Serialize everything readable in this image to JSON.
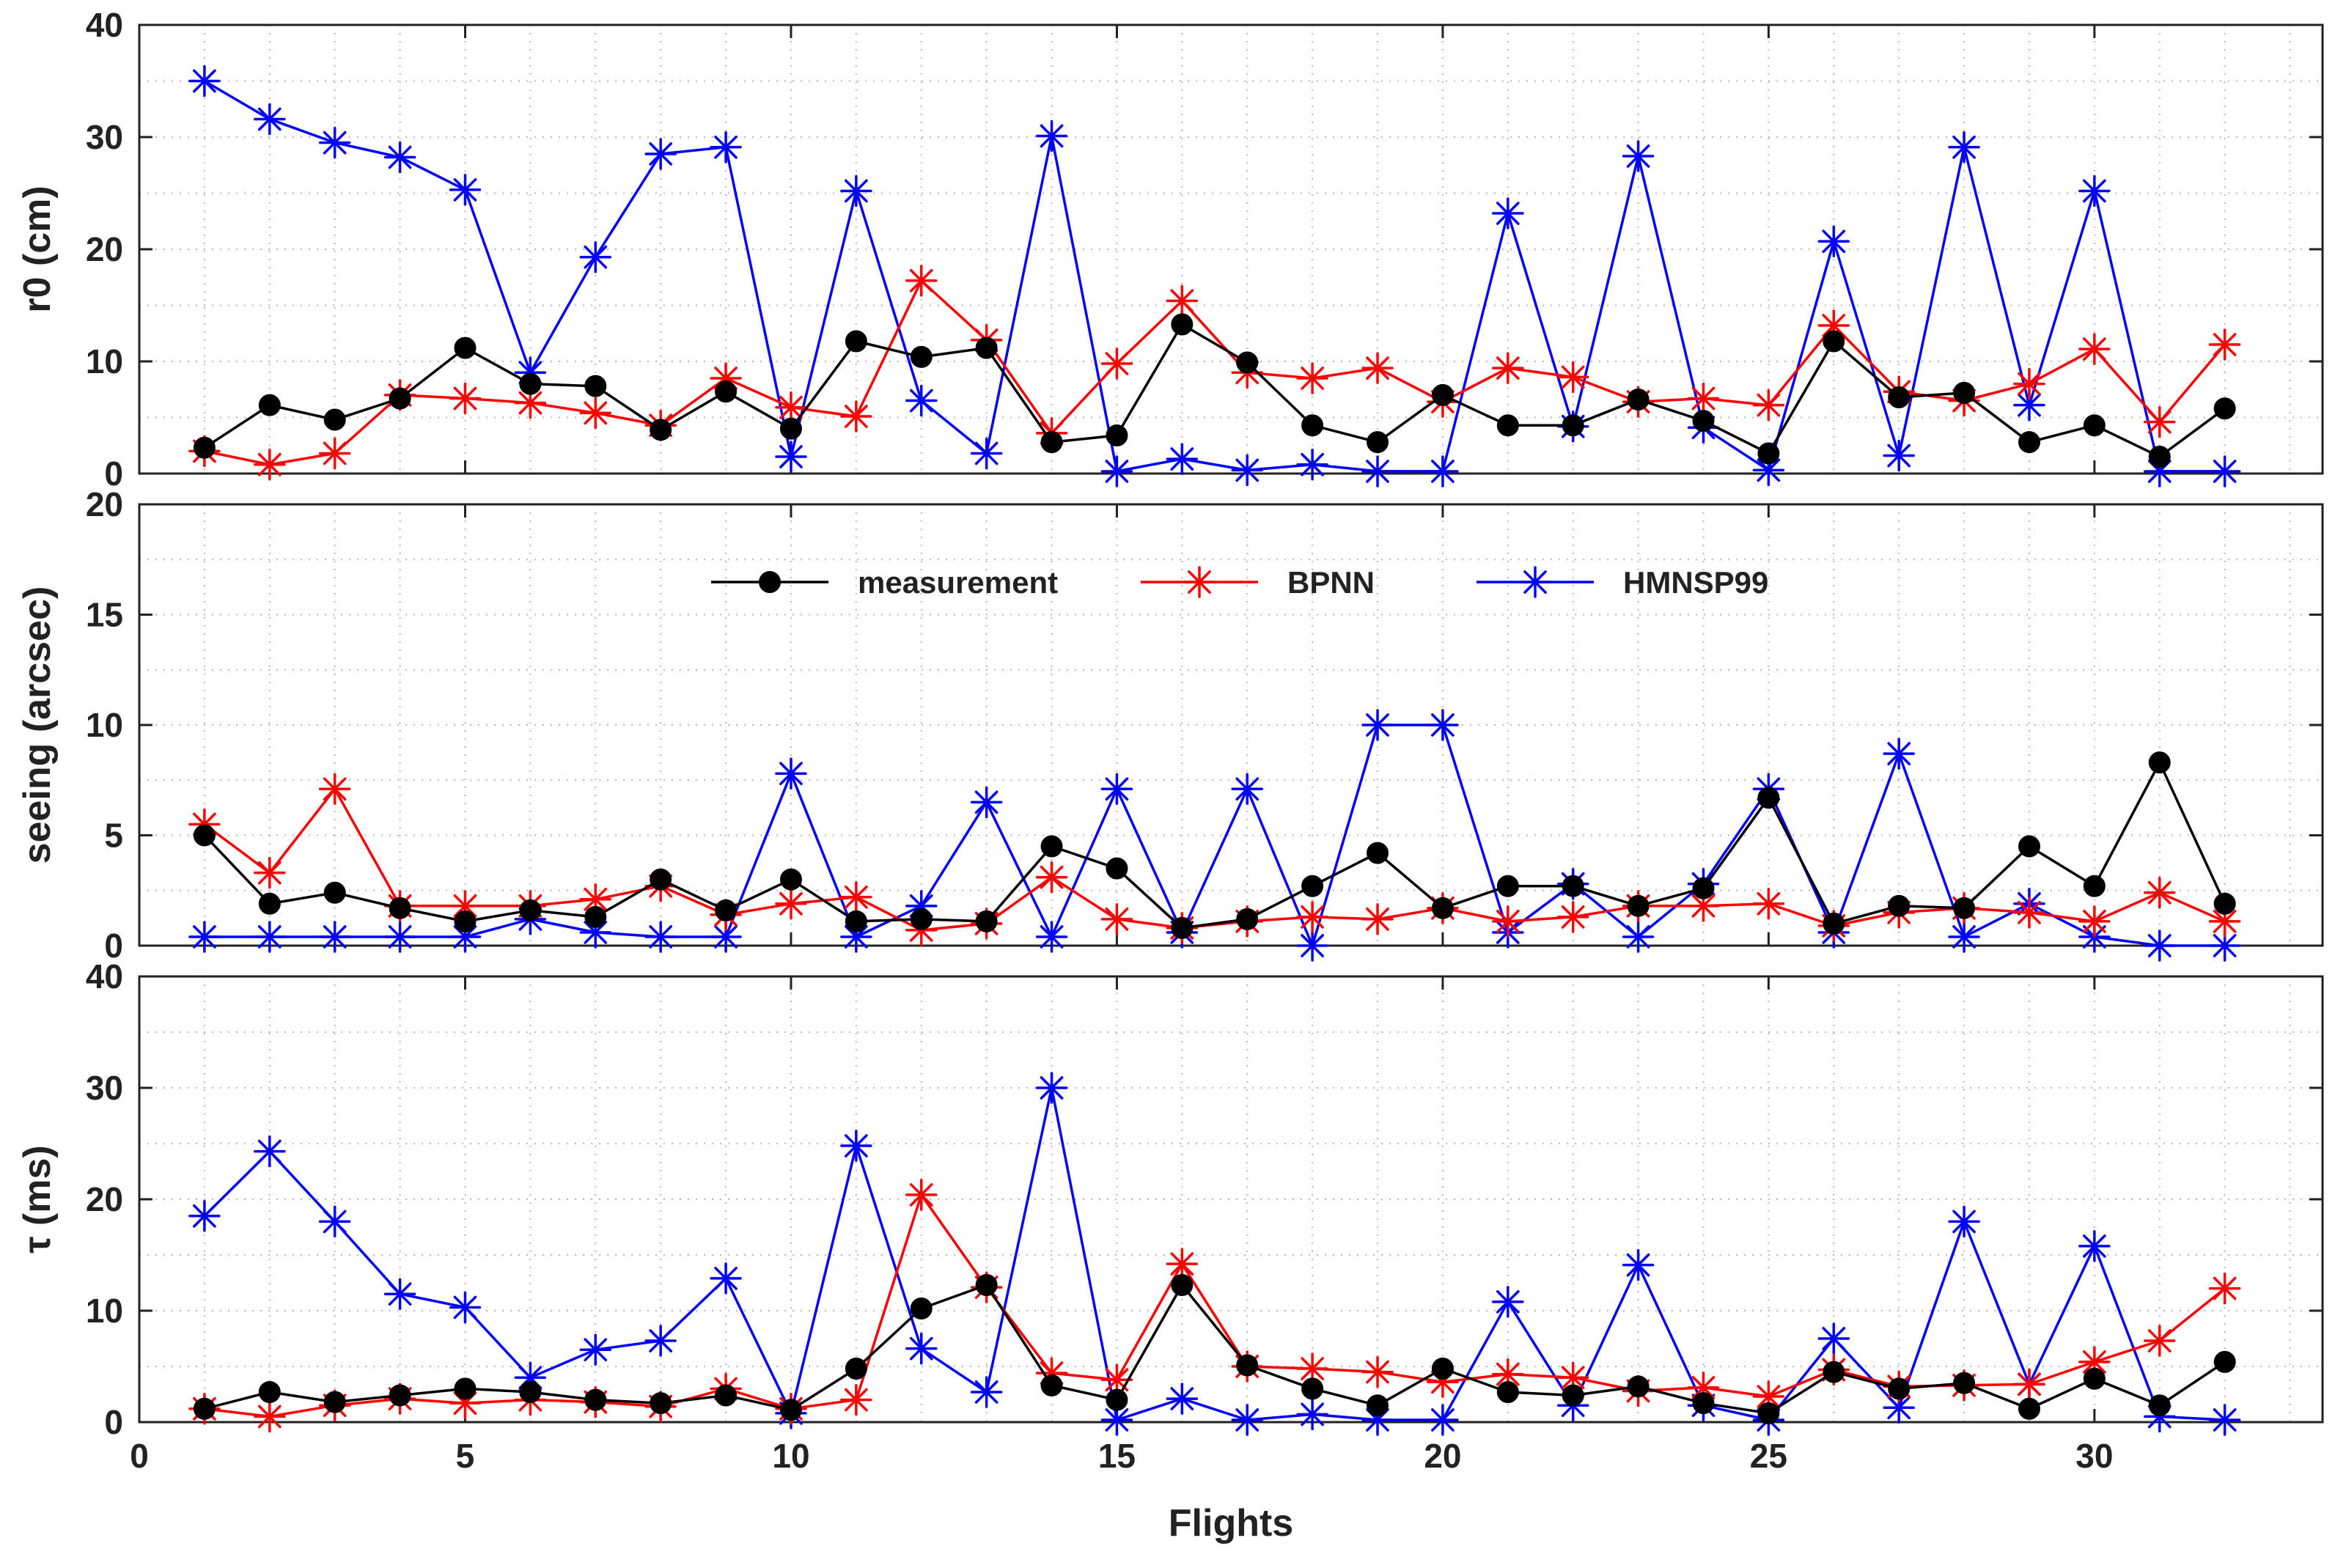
{
  "figure": {
    "xlabel": "Flights",
    "xlim": [
      0,
      33.5
    ],
    "xticks": [
      0,
      5,
      10,
      15,
      20,
      25,
      30
    ]
  },
  "legend": {
    "items": [
      {
        "label": "measurement",
        "color": "#000000",
        "marker": "circle"
      },
      {
        "label": "BPNN",
        "color": "#ff0000",
        "marker": "asterisk"
      },
      {
        "label": "HMNSP99",
        "color": "#0000ff",
        "marker": "asterisk"
      }
    ]
  },
  "chart_data": [
    {
      "type": "line",
      "ylabel": "r0 (cm)",
      "ylim": [
        0,
        40
      ],
      "yticks": [
        0,
        10,
        20,
        30,
        40
      ],
      "grid": true,
      "x": [
        1,
        2,
        3,
        4,
        5,
        6,
        7,
        8,
        9,
        10,
        11,
        12,
        13,
        14,
        15,
        16,
        17,
        18,
        19,
        20,
        21,
        22,
        23,
        24,
        25,
        26,
        27,
        28,
        29,
        30,
        31,
        32
      ],
      "series": [
        {
          "name": "measurement",
          "color": "#000000",
          "marker": "circle",
          "values": [
            2.3,
            6.1,
            4.8,
            6.7,
            11.2,
            8.0,
            7.8,
            3.9,
            7.3,
            4.0,
            11.8,
            10.4,
            11.2,
            2.8,
            3.4,
            13.3,
            9.9,
            4.3,
            2.8,
            7.0,
            4.3,
            4.3,
            6.6,
            4.7,
            1.8,
            11.8,
            6.8,
            7.2,
            2.8,
            4.3,
            1.5,
            5.8
          ]
        },
        {
          "name": "BPNN",
          "color": "#ff0000",
          "marker": "asterisk",
          "values": [
            2.0,
            0.8,
            1.8,
            7.0,
            6.7,
            6.3,
            5.4,
            4.3,
            8.5,
            5.9,
            5.1,
            17.2,
            11.9,
            3.6,
            9.8,
            15.4,
            9.0,
            8.5,
            9.4,
            6.4,
            9.4,
            8.6,
            6.4,
            6.7,
            6.1,
            13.2,
            7.3,
            6.5,
            8.0,
            11.1,
            4.6,
            11.5
          ]
        },
        {
          "name": "HMNSP99",
          "color": "#0000ff",
          "marker": "asterisk",
          "values": [
            35.0,
            31.6,
            29.5,
            28.2,
            25.3,
            9.0,
            19.3,
            28.5,
            29.1,
            1.5,
            25.2,
            6.5,
            1.8,
            30.1,
            0.2,
            1.3,
            0.3,
            0.8,
            0.2,
            0.2,
            23.2,
            4.2,
            28.3,
            4.1,
            0.3,
            20.7,
            1.6,
            29.1,
            6.1,
            25.2,
            0.2,
            0.2
          ]
        }
      ]
    },
    {
      "type": "line",
      "ylabel": "seeing (arcsec)",
      "ylim": [
        0,
        20
      ],
      "yticks": [
        0,
        5,
        10,
        15,
        20
      ],
      "grid": true,
      "x": [
        1,
        2,
        3,
        4,
        5,
        6,
        7,
        8,
        9,
        10,
        11,
        12,
        13,
        14,
        15,
        16,
        17,
        18,
        19,
        20,
        21,
        22,
        23,
        24,
        25,
        26,
        27,
        28,
        29,
        30,
        31,
        32
      ],
      "series": [
        {
          "name": "measurement",
          "color": "#000000",
          "marker": "circle",
          "values": [
            5.0,
            1.9,
            2.4,
            1.7,
            1.1,
            1.6,
            1.3,
            3.0,
            1.6,
            3.0,
            1.1,
            1.2,
            1.1,
            4.5,
            3.5,
            0.8,
            1.2,
            2.7,
            4.2,
            1.7,
            2.7,
            2.7,
            1.8,
            2.6,
            6.7,
            1.0,
            1.8,
            1.7,
            4.5,
            2.7,
            8.3,
            1.9
          ]
        },
        {
          "name": "BPNN",
          "color": "#ff0000",
          "marker": "asterisk",
          "values": [
            5.5,
            3.3,
            7.1,
            1.8,
            1.8,
            1.8,
            2.1,
            2.7,
            1.4,
            1.9,
            2.2,
            0.7,
            1.0,
            3.1,
            1.2,
            0.8,
            1.1,
            1.3,
            1.2,
            1.7,
            1.1,
            1.3,
            1.8,
            1.8,
            1.9,
            0.9,
            1.5,
            1.7,
            1.5,
            1.1,
            2.4,
            1.1
          ]
        },
        {
          "name": "HMNSP99",
          "color": "#0000ff",
          "marker": "asterisk",
          "values": [
            0.4,
            0.4,
            0.4,
            0.4,
            0.4,
            1.2,
            0.6,
            0.4,
            0.4,
            7.8,
            0.4,
            1.8,
            6.5,
            0.4,
            7.1,
            0.6,
            7.1,
            0.0,
            10.0,
            10.0,
            0.6,
            2.8,
            0.4,
            2.8,
            7.1,
            0.6,
            8.7,
            0.4,
            1.9,
            0.4,
            0.0,
            0.0
          ]
        }
      ]
    },
    {
      "type": "line",
      "ylabel": "τ (ms)",
      "ylim": [
        0,
        40
      ],
      "yticks": [
        0,
        10,
        20,
        30,
        40
      ],
      "grid": true,
      "x": [
        1,
        2,
        3,
        4,
        5,
        6,
        7,
        8,
        9,
        10,
        11,
        12,
        13,
        14,
        15,
        16,
        17,
        18,
        19,
        20,
        21,
        22,
        23,
        24,
        25,
        26,
        27,
        28,
        29,
        30,
        31,
        32
      ],
      "series": [
        {
          "name": "measurement",
          "color": "#000000",
          "marker": "circle",
          "values": [
            1.2,
            2.7,
            1.8,
            2.4,
            3.0,
            2.7,
            2.0,
            1.7,
            2.4,
            1.1,
            4.8,
            10.2,
            12.3,
            3.3,
            2.0,
            12.3,
            5.1,
            3.0,
            1.5,
            4.8,
            2.7,
            2.4,
            3.2,
            1.7,
            0.8,
            4.5,
            3.0,
            3.5,
            1.2,
            3.9,
            1.5,
            5.4
          ]
        },
        {
          "name": "BPNN",
          "color": "#ff0000",
          "marker": "asterisk",
          "values": [
            1.2,
            0.5,
            1.5,
            2.1,
            1.7,
            2.0,
            1.8,
            1.4,
            3.0,
            1.2,
            2.0,
            20.4,
            12.1,
            4.4,
            3.8,
            14.2,
            5.0,
            4.8,
            4.5,
            3.6,
            4.3,
            4.0,
            2.8,
            3.1,
            2.3,
            4.7,
            3.2,
            3.3,
            3.4,
            5.4,
            7.3,
            12.0
          ]
        },
        {
          "name": "HMNSP99",
          "color": "#0000ff",
          "marker": "asterisk",
          "values": [
            18.5,
            24.3,
            18.0,
            11.5,
            10.3,
            4.0,
            6.5,
            7.3,
            12.9,
            0.8,
            24.8,
            6.6,
            2.7,
            30.0,
            0.2,
            2.1,
            0.2,
            0.7,
            0.2,
            0.2,
            10.8,
            1.5,
            14.1,
            1.5,
            0.2,
            7.5,
            1.3,
            18.0,
            3.4,
            15.8,
            0.5,
            0.2
          ]
        }
      ]
    }
  ]
}
